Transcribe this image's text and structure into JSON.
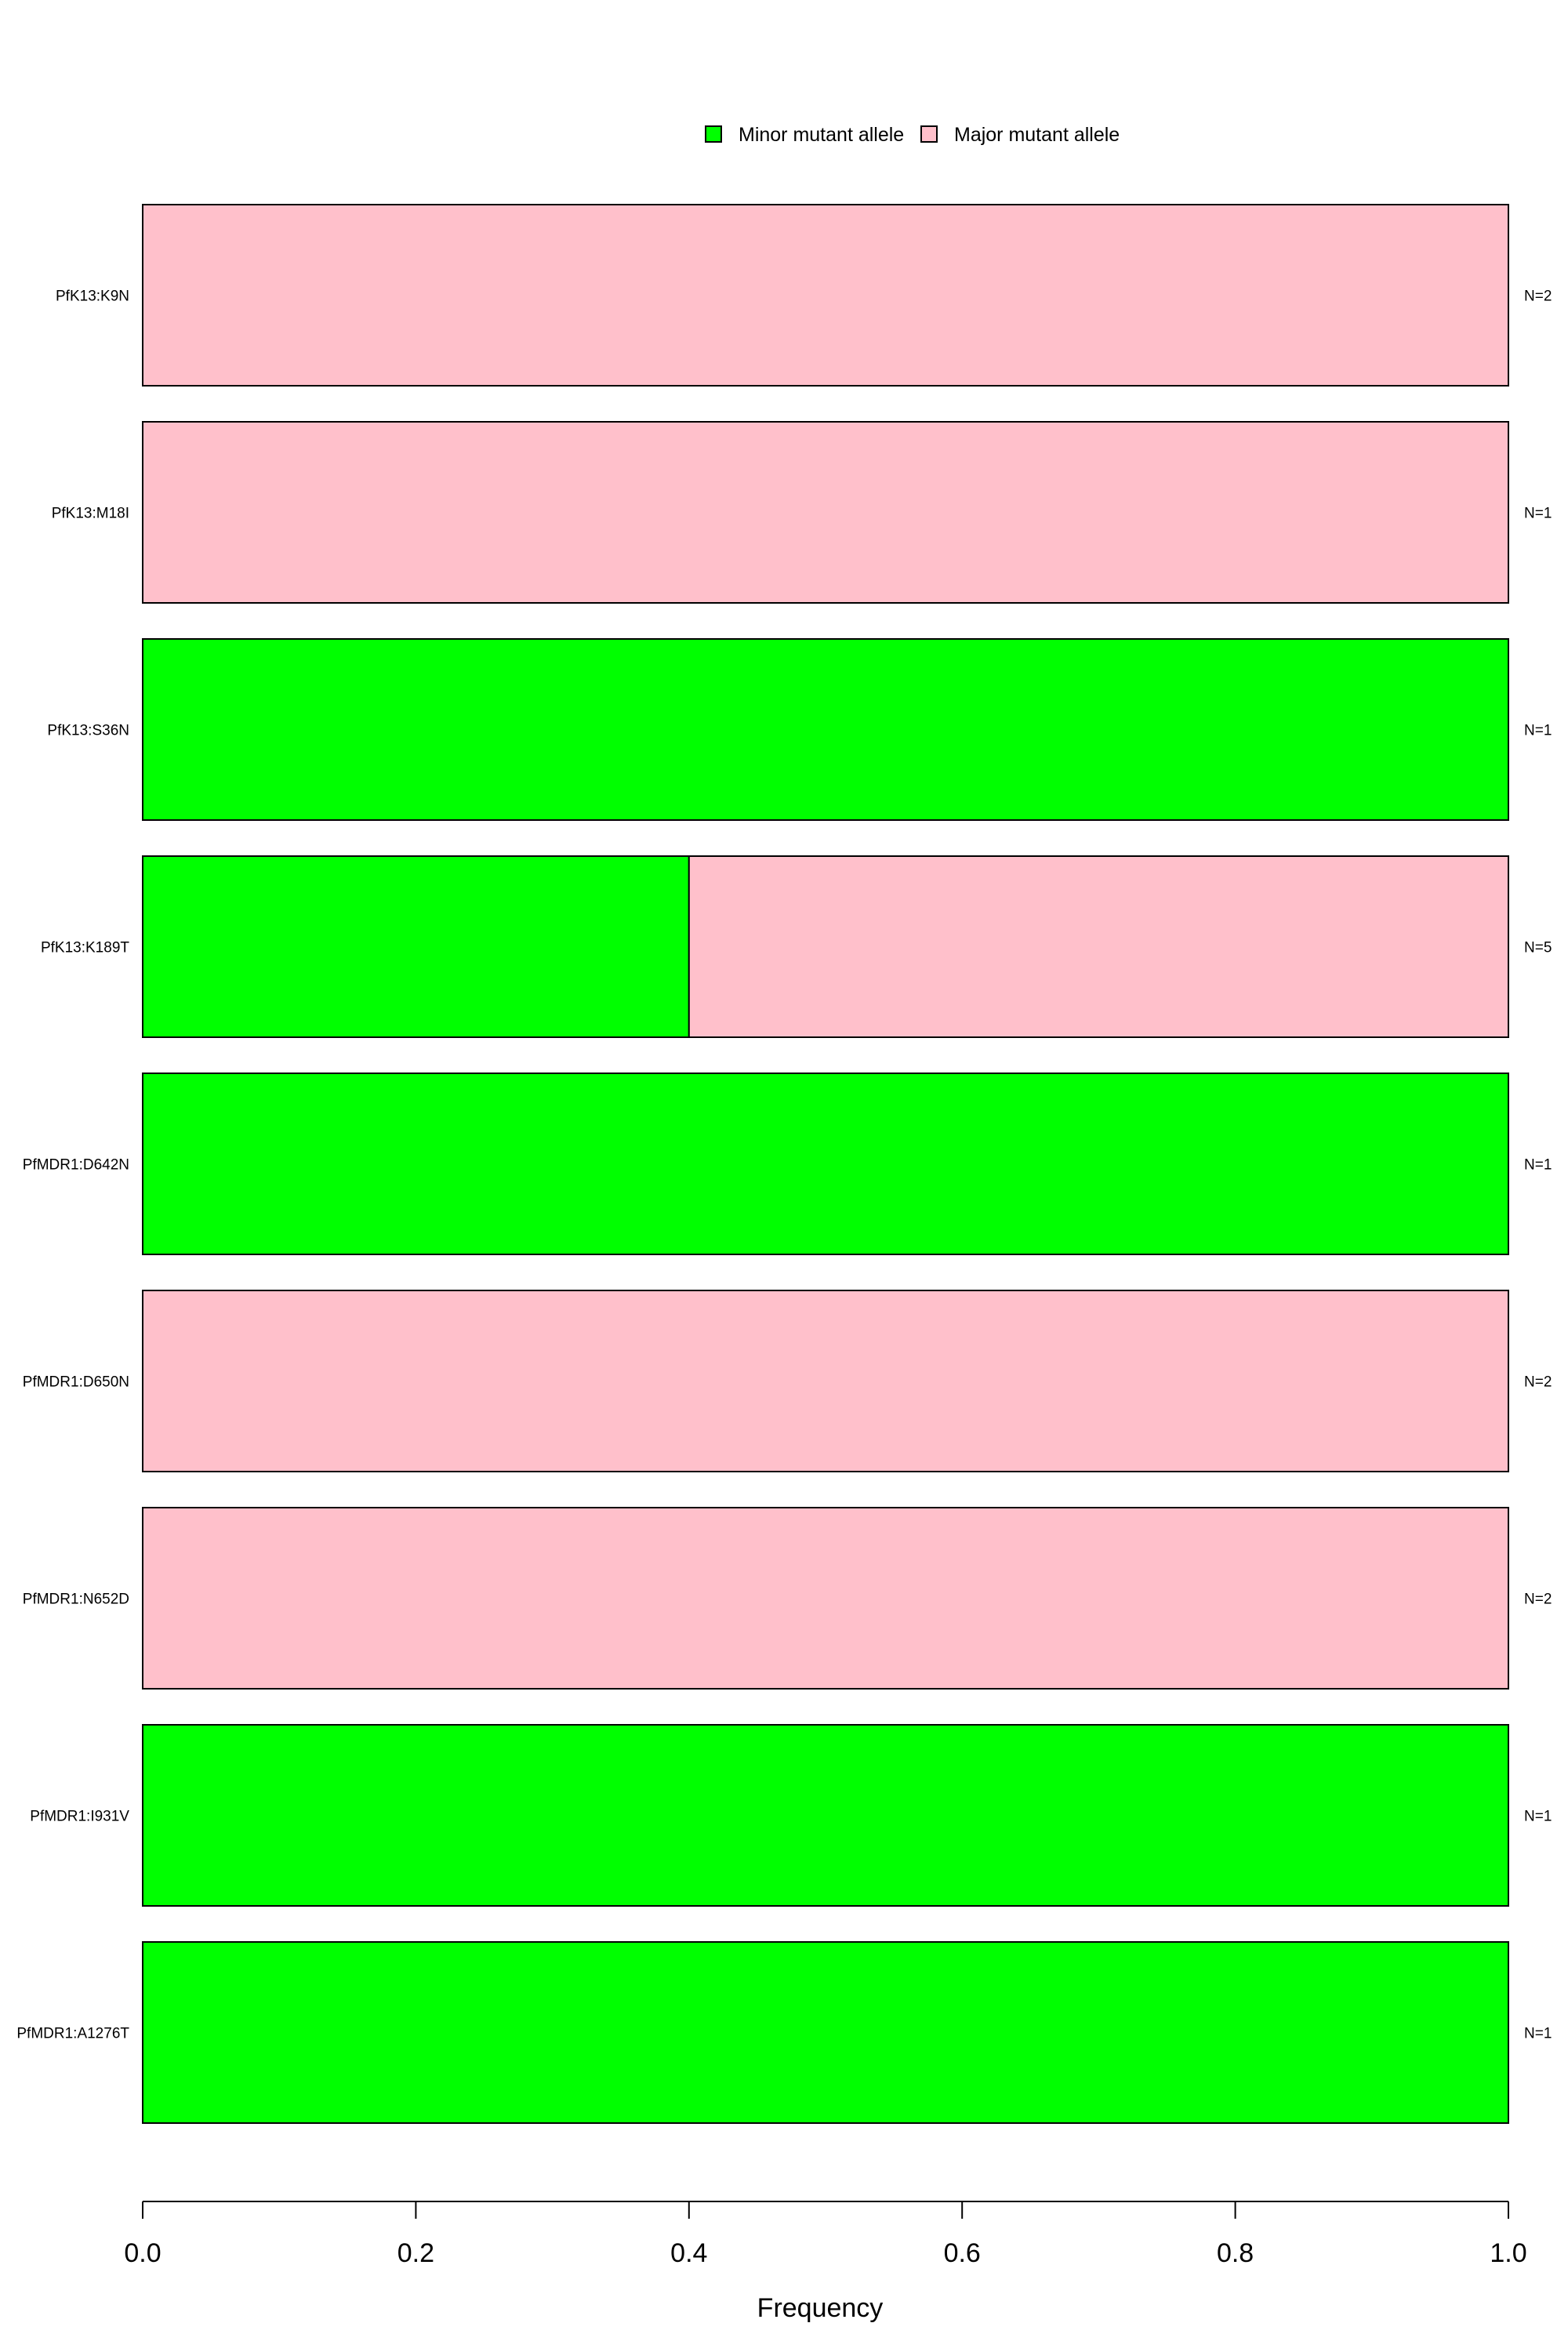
{
  "chart_data": {
    "type": "bar",
    "orientation": "horizontal",
    "stacked": true,
    "categories": [
      "PfK13:K9N",
      "PfK13:M18I",
      "PfK13:S36N",
      "PfK13:K189T",
      "PfMDR1:D642N",
      "PfMDR1:D650N",
      "PfMDR1:N652D",
      "PfMDR1:I931V",
      "PfMDR1:A1276T"
    ],
    "series": [
      {
        "name": "Minor mutant allele",
        "color": "#00ff00",
        "values": [
          0,
          0,
          1,
          0.4,
          1,
          0,
          0,
          1,
          1
        ]
      },
      {
        "name": "Major mutant allele",
        "color": "#ffc0cb",
        "values": [
          1,
          1,
          0,
          0.6,
          0,
          1,
          1,
          0,
          0
        ]
      }
    ],
    "counts": [
      "N=2",
      "N=1",
      "N=1",
      "N=5",
      "N=1",
      "N=2",
      "N=2",
      "N=1",
      "N=1"
    ],
    "xlabel": "Frequency",
    "xlim": [
      0,
      1
    ],
    "xticks": [
      "0.0",
      "0.2",
      "0.4",
      "0.6",
      "0.8",
      "1.0"
    ],
    "grid": false,
    "legend_position": "top"
  }
}
